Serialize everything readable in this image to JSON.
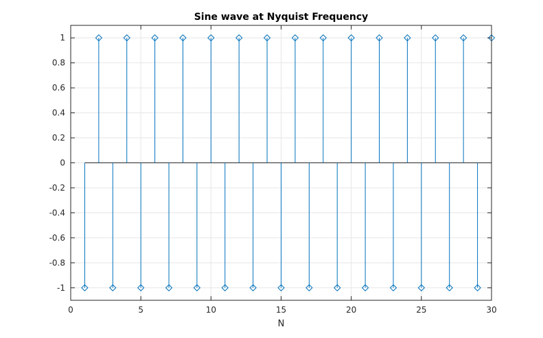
{
  "chart_data": {
    "type": "stem",
    "title": "Sine wave at Nyquist Frequency",
    "xlabel": "N",
    "ylabel": "",
    "xlim": [
      0,
      30
    ],
    "ylim": [
      -1.1,
      1.1
    ],
    "xticks": [
      0,
      5,
      10,
      15,
      20,
      25,
      30
    ],
    "xtick_labels": [
      "0",
      "5",
      "10",
      "15",
      "20",
      "25",
      "30"
    ],
    "yticks": [
      -1,
      -0.8,
      -0.6,
      -0.4,
      -0.2,
      0,
      0.2,
      0.4,
      0.6,
      0.8,
      1
    ],
    "ytick_labels": [
      "-1",
      "-0.8",
      "-0.6",
      "-0.4",
      "-0.2",
      "0",
      "0.2",
      "0.4",
      "0.6",
      "0.8",
      "1"
    ],
    "grid": true,
    "marker": "diamond",
    "color": "#0072bd",
    "series": [
      {
        "x": [
          1,
          2,
          3,
          4,
          5,
          6,
          7,
          8,
          9,
          10,
          11,
          12,
          13,
          14,
          15,
          16,
          17,
          18,
          19,
          20,
          21,
          22,
          23,
          24,
          25,
          26,
          27,
          28,
          29,
          30
        ],
        "values": [
          -1,
          1,
          -1,
          1,
          -1,
          1,
          -1,
          1,
          -1,
          1,
          -1,
          1,
          -1,
          1,
          -1,
          1,
          -1,
          1,
          -1,
          1,
          -1,
          1,
          -1,
          1,
          -1,
          1,
          -1,
          1,
          -1,
          1
        ]
      }
    ]
  }
}
